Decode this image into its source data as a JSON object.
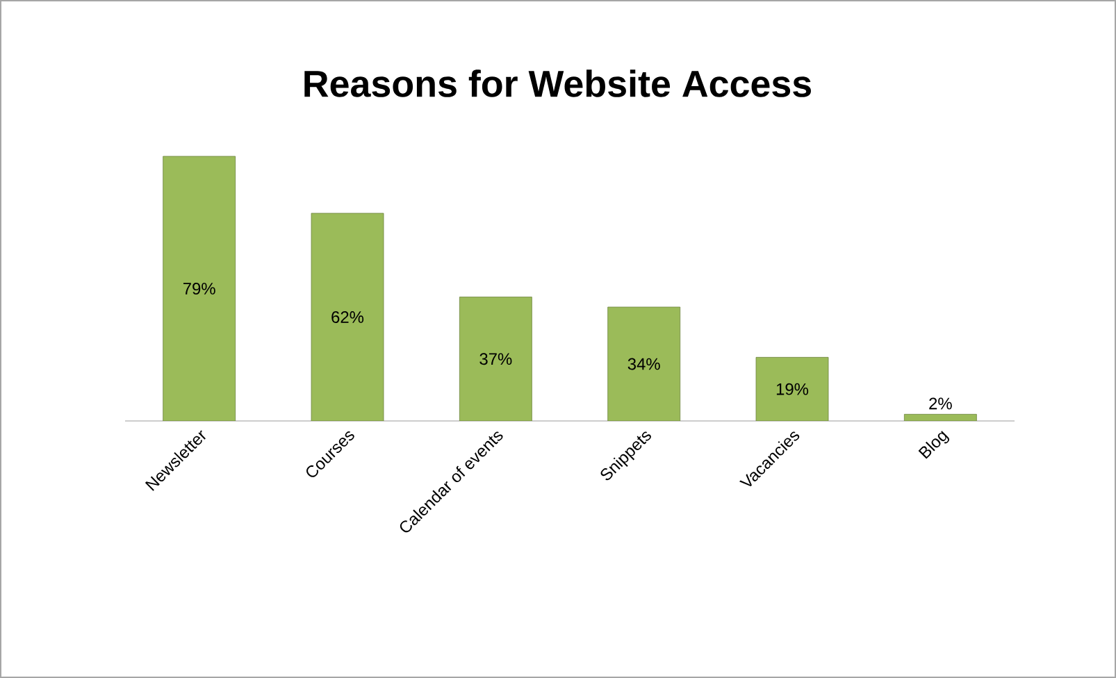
{
  "chart_data": {
    "type": "bar",
    "title": "Reasons for Website Access",
    "categories": [
      "Newsletter",
      "Courses",
      "Calendar of events",
      "Snippets",
      "Vacancies",
      "Blog"
    ],
    "values": [
      79,
      62,
      37,
      34,
      19,
      2
    ],
    "value_labels": [
      "79%",
      "62%",
      "37%",
      "34%",
      "19%",
      "2%"
    ],
    "color": "#9bbb59",
    "grid": false
  }
}
